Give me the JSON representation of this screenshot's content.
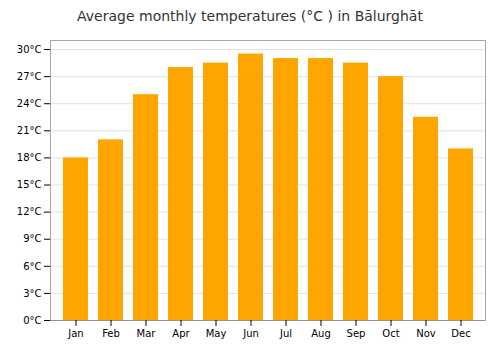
{
  "chart_data": {
    "type": "bar",
    "title": "Average monthly temperatures (°C ) in Bālurghāt",
    "categories": [
      "Jan",
      "Feb",
      "Mar",
      "Apr",
      "May",
      "Jun",
      "Jul",
      "Aug",
      "Sep",
      "Oct",
      "Nov",
      "Dec"
    ],
    "values": [
      18.0,
      20.0,
      25.0,
      28.0,
      28.5,
      29.5,
      29.0,
      29.0,
      28.5,
      27.0,
      22.5,
      19.0
    ],
    "color": "#FFA500",
    "ylim": [
      0,
      31
    ],
    "yticks": [
      {
        "value": 0,
        "label": "0°C"
      },
      {
        "value": 3,
        "label": "3°C"
      },
      {
        "value": 6,
        "label": "6°C"
      },
      {
        "value": 9,
        "label": "9°C"
      },
      {
        "value": 12,
        "label": "12°C"
      },
      {
        "value": 15,
        "label": "15°C"
      },
      {
        "value": 18,
        "label": "18°C"
      },
      {
        "value": 21,
        "label": "21°C"
      },
      {
        "value": 24,
        "label": "24°C"
      },
      {
        "value": 27,
        "label": "27°C"
      },
      {
        "value": 30,
        "label": "30°C"
      }
    ],
    "grid": true
  }
}
